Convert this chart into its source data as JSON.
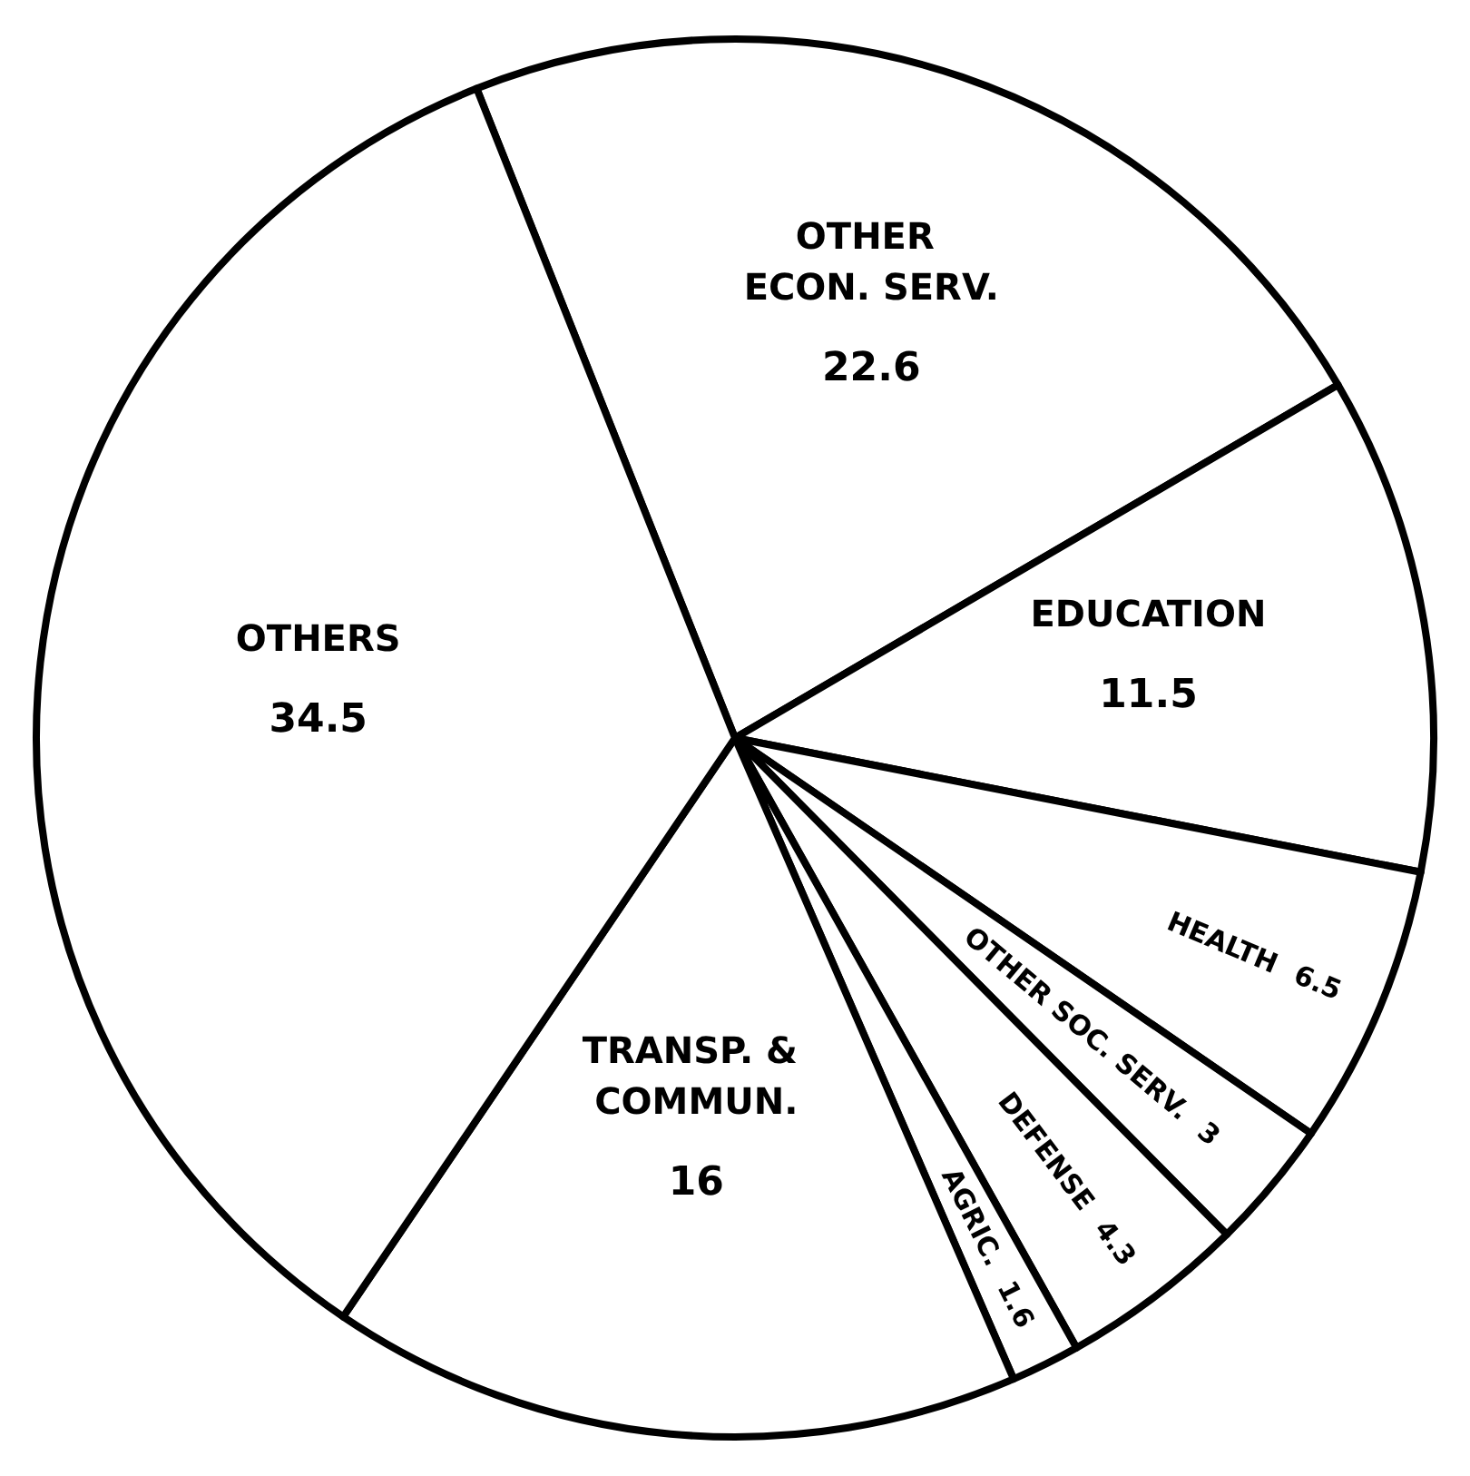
{
  "chart_data": {
    "type": "pie",
    "categories": [
      "OTHER ECON. SERV.",
      "EDUCATION",
      "HEALTH",
      "OTHER SOC. SERV.",
      "DEFENSE",
      "AGRIC.",
      "TRANSP. & COMMUN.",
      "OTHERS"
    ],
    "values": [
      22.6,
      11.5,
      6.5,
      3,
      4.3,
      1.6,
      16,
      34.5
    ],
    "colors": [
      "#ffffff",
      "#ffffff",
      "#ffffff",
      "#ffffff",
      "#ffffff",
      "#ffffff",
      "#ffffff",
      "#ffffff"
    ],
    "data_labels": true,
    "legend": false
  }
}
